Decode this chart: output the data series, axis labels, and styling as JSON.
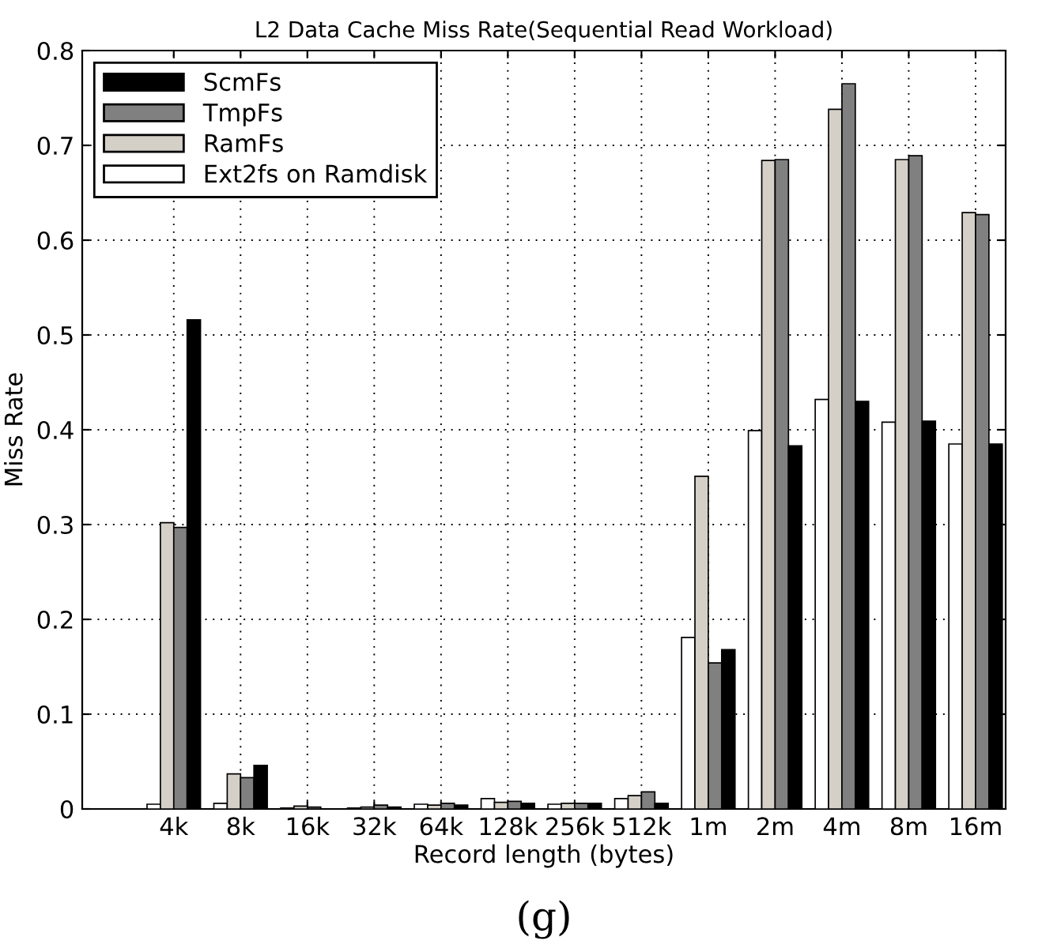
{
  "chart_data": {
    "type": "bar",
    "title": "L2 Data Cache Miss Rate(Sequential Read Workload)",
    "xlabel": "Record length (bytes)",
    "ylabel": "Miss Rate",
    "categories": [
      "4k",
      "8k",
      "16k",
      "32k",
      "64k",
      "128k",
      "256k",
      "512k",
      "1m",
      "2m",
      "4m",
      "8m",
      "16m"
    ],
    "series": [
      {
        "name": "Ext2fs on Ramdisk",
        "color": "#ffffff",
        "values": [
          0.005,
          0.006,
          0.001,
          0.001,
          0.005,
          0.011,
          0.005,
          0.011,
          0.181,
          0.399,
          0.432,
          0.408,
          0.385
        ]
      },
      {
        "name": "RamFs",
        "color": "#d4d0c8",
        "values": [
          0.302,
          0.037,
          0.003,
          0.002,
          0.004,
          0.007,
          0.006,
          0.014,
          0.351,
          0.684,
          0.738,
          0.685,
          0.629
        ]
      },
      {
        "name": "TmpFs",
        "color": "#808080",
        "values": [
          0.297,
          0.033,
          0.002,
          0.004,
          0.006,
          0.008,
          0.006,
          0.018,
          0.154,
          0.685,
          0.765,
          0.689,
          0.627
        ]
      },
      {
        "name": "ScmFs",
        "color": "#000000",
        "values": [
          0.516,
          0.046,
          null,
          0.002,
          0.004,
          0.006,
          0.006,
          0.006,
          0.168,
          0.383,
          0.43,
          0.409,
          0.385
        ]
      }
    ],
    "ylim": [
      0,
      0.8
    ],
    "yticks": [
      0,
      0.1,
      0.2,
      0.3,
      0.4,
      0.5,
      0.6,
      0.7,
      0.8
    ],
    "grid": true,
    "legend": "top left",
    "annotations": [
      "(g)"
    ]
  }
}
